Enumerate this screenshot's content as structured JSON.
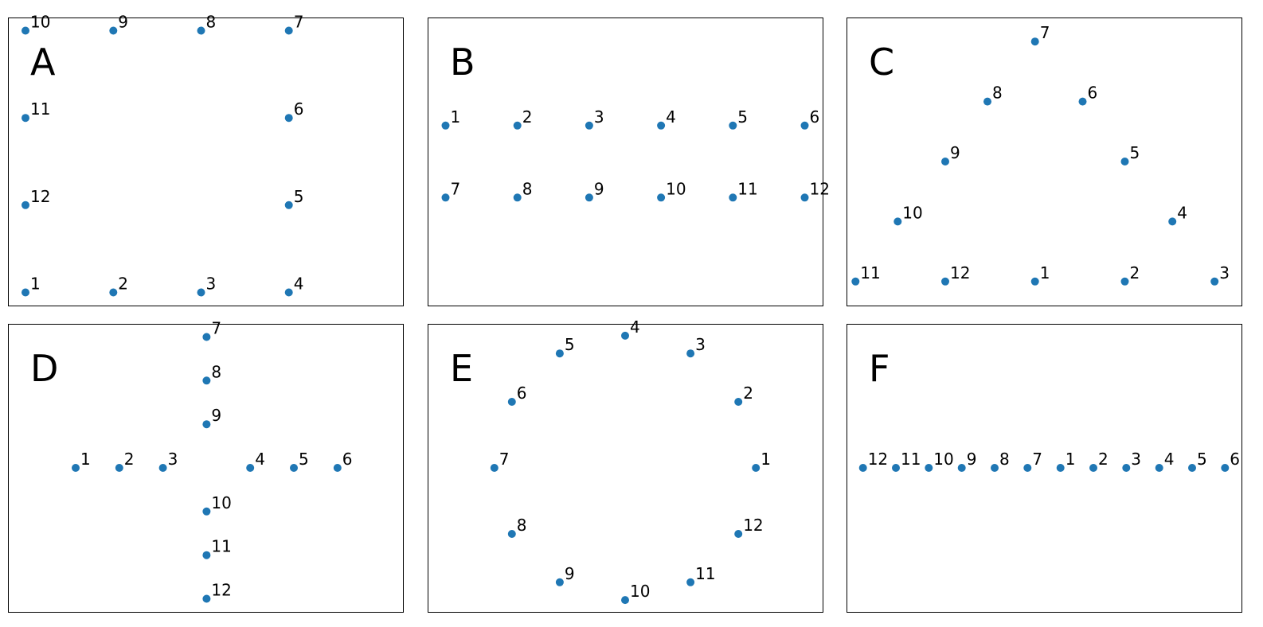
{
  "chart_data": [
    {
      "type": "scatter",
      "title": "A",
      "xlim": [
        -0.2,
        4.3
      ],
      "ylim": [
        -0.15,
        3.15
      ],
      "points": [
        {
          "label": "1",
          "x": 0,
          "y": 0
        },
        {
          "label": "2",
          "x": 1,
          "y": 0
        },
        {
          "label": "3",
          "x": 2,
          "y": 0
        },
        {
          "label": "4",
          "x": 3,
          "y": 0
        },
        {
          "label": "5",
          "x": 3,
          "y": 1
        },
        {
          "label": "6",
          "x": 3,
          "y": 2
        },
        {
          "label": "7",
          "x": 3,
          "y": 3
        },
        {
          "label": "8",
          "x": 2,
          "y": 3
        },
        {
          "label": "9",
          "x": 1,
          "y": 3
        },
        {
          "label": "10",
          "x": 0,
          "y": 3
        },
        {
          "label": "11",
          "x": 0,
          "y": 2
        },
        {
          "label": "12",
          "x": 0,
          "y": 1
        }
      ]
    },
    {
      "type": "scatter",
      "title": "B",
      "xlim": [
        -0.25,
        5.25
      ],
      "ylim": [
        -0.5,
        3.5
      ],
      "points": [
        {
          "label": "1",
          "x": 0,
          "y": 2
        },
        {
          "label": "2",
          "x": 1,
          "y": 2
        },
        {
          "label": "3",
          "x": 2,
          "y": 2
        },
        {
          "label": "4",
          "x": 3,
          "y": 2
        },
        {
          "label": "5",
          "x": 4,
          "y": 2
        },
        {
          "label": "6",
          "x": 5,
          "y": 2
        },
        {
          "label": "7",
          "x": 0,
          "y": 1
        },
        {
          "label": "8",
          "x": 1,
          "y": 1
        },
        {
          "label": "9",
          "x": 2,
          "y": 1
        },
        {
          "label": "10",
          "x": 3,
          "y": 1
        },
        {
          "label": "11",
          "x": 4,
          "y": 1
        },
        {
          "label": "12",
          "x": 5,
          "y": 1
        }
      ]
    },
    {
      "type": "scatter",
      "title": "C",
      "xlim": [
        -0.1,
        4.3
      ],
      "ylim": [
        -0.4,
        4.4
      ],
      "points": [
        {
          "label": "1",
          "x": 2,
          "y": 0
        },
        {
          "label": "2",
          "x": 3,
          "y": 0
        },
        {
          "label": "3",
          "x": 4,
          "y": 0
        },
        {
          "label": "4",
          "x": 3.53,
          "y": 1
        },
        {
          "label": "5",
          "x": 3,
          "y": 2
        },
        {
          "label": "6",
          "x": 2.53,
          "y": 3
        },
        {
          "label": "7",
          "x": 2,
          "y": 4
        },
        {
          "label": "8",
          "x": 1.47,
          "y": 3
        },
        {
          "label": "9",
          "x": 1,
          "y": 2
        },
        {
          "label": "10",
          "x": 0.47,
          "y": 1
        },
        {
          "label": "11",
          "x": 0,
          "y": 0
        },
        {
          "label": "12",
          "x": 1,
          "y": 0
        }
      ]
    },
    {
      "type": "scatter",
      "title": "D",
      "xlim": [
        -1.55,
        7.5
      ],
      "ylim": [
        -3.3,
        3.3
      ],
      "points": [
        {
          "label": "1",
          "x": 0,
          "y": 0
        },
        {
          "label": "2",
          "x": 1,
          "y": 0
        },
        {
          "label": "3",
          "x": 2,
          "y": 0
        },
        {
          "label": "4",
          "x": 4,
          "y": 0
        },
        {
          "label": "5",
          "x": 5,
          "y": 0
        },
        {
          "label": "6",
          "x": 6,
          "y": 0
        },
        {
          "label": "7",
          "x": 3,
          "y": 3
        },
        {
          "label": "8",
          "x": 3,
          "y": 2
        },
        {
          "label": "9",
          "x": 3,
          "y": 1
        },
        {
          "label": "10",
          "x": 3,
          "y": -1
        },
        {
          "label": "11",
          "x": 3,
          "y": -2
        },
        {
          "label": "12",
          "x": 3,
          "y": -3
        }
      ]
    },
    {
      "type": "scatter",
      "title": "E",
      "xlim": [
        -1.51,
        1.51
      ],
      "ylim": [
        -1.09,
        1.09
      ],
      "points": [
        {
          "label": "1",
          "x": 1.0,
          "y": 0.0
        },
        {
          "label": "2",
          "x": 0.866,
          "y": 0.5
        },
        {
          "label": "3",
          "x": 0.5,
          "y": 0.866
        },
        {
          "label": "4",
          "x": 0.0,
          "y": 1.0
        },
        {
          "label": "5",
          "x": -0.5,
          "y": 0.866
        },
        {
          "label": "6",
          "x": -0.866,
          "y": 0.5
        },
        {
          "label": "7",
          "x": -1.0,
          "y": 0.0
        },
        {
          "label": "8",
          "x": -0.866,
          "y": -0.5
        },
        {
          "label": "9",
          "x": -0.5,
          "y": -0.866
        },
        {
          "label": "10",
          "x": 0.0,
          "y": -1.0
        },
        {
          "label": "11",
          "x": 0.5,
          "y": -0.866
        },
        {
          "label": "12",
          "x": 0.866,
          "y": -0.5
        }
      ]
    },
    {
      "type": "scatter",
      "title": "F",
      "xlim": [
        -6,
        6
      ],
      "ylim": [
        -1,
        1
      ],
      "points": [
        {
          "label": "12",
          "x": -5.5,
          "y": 0
        },
        {
          "label": "11",
          "x": -4.5,
          "y": 0
        },
        {
          "label": "10",
          "x": -3.5,
          "y": 0
        },
        {
          "label": "9",
          "x": -2.5,
          "y": 0
        },
        {
          "label": "8",
          "x": -1.5,
          "y": 0
        },
        {
          "label": "7",
          "x": -0.5,
          "y": 0
        },
        {
          "label": "1",
          "x": 0.5,
          "y": 0
        },
        {
          "label": "2",
          "x": 1.5,
          "y": 0
        },
        {
          "label": "3",
          "x": 2.5,
          "y": 0
        },
        {
          "label": "4",
          "x": 3.5,
          "y": 0
        },
        {
          "label": "5",
          "x": 4.5,
          "y": 0
        },
        {
          "label": "6",
          "x": 5.5,
          "y": 0
        }
      ]
    }
  ],
  "colors": {
    "marker": "#1f77b4",
    "frame": "#000000",
    "text": "#000000"
  }
}
